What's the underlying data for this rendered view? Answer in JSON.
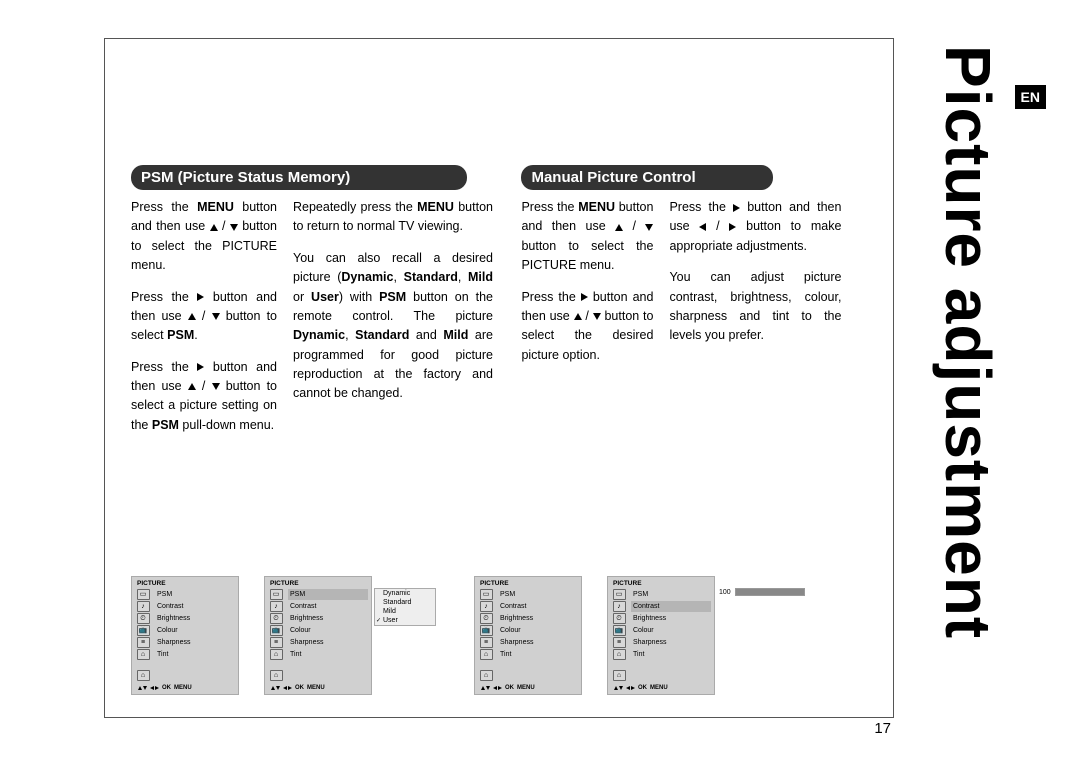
{
  "sideTitle": "Picture adjustment",
  "langBadge": "EN",
  "pageNumber": "17",
  "sections": {
    "psm": {
      "heading": "PSM (Picture Status Memory)",
      "col1": {
        "p1a": "Press the ",
        "p1b": "MENU",
        "p1c": " button and then use ",
        "p1d": " / ",
        "p1e": " button to select the PICTURE menu.",
        "p2a": "Press the ",
        "p2b": " button and then use ",
        "p2c": " / ",
        "p2d": " button to select ",
        "p2e": "PSM",
        "p2f": ".",
        "p3a": "Press the ",
        "p3b": " button and then use ",
        "p3c": " / ",
        "p3d": " button to select a picture setting on the ",
        "p3e": "PSM",
        "p3f": " pull-down menu."
      },
      "col2": {
        "p1a": "Repeatedly press the ",
        "p1b": "MENU",
        "p1c": " button to return to normal TV viewing.",
        "p2a": "You can also recall a desired picture (",
        "p2b": "Dynamic",
        "p2c": ", ",
        "p2d": "Standard",
        "p2e": ", ",
        "p2f": "Mild",
        "p2g": " or ",
        "p2h": "User",
        "p2i": ") with ",
        "p2j": "PSM",
        "p2k": " button on the remote control. The picture ",
        "p2l": "Dynamic",
        "p2m": ", ",
        "p2n": "Standard",
        "p2o": " and ",
        "p2p": "Mild",
        "p2q": " are programmed for good picture reproduction at the factory and cannot be changed."
      }
    },
    "manual": {
      "heading": "Manual Picture Control",
      "col1": {
        "p1a": "Press the ",
        "p1b": "MENU",
        "p1c": " button and then use ",
        "p1d": " / ",
        "p1e": " button to select the PICTURE menu.",
        "p2a": "Press the ",
        "p2b": " button and then use ",
        "p2c": " / ",
        "p2d": " button to select the desired picture option."
      },
      "col2": {
        "p1a": "Press the ",
        "p1b": " button and then use ",
        "p1c": " / ",
        "p1d": " button to make appropriate adjustments.",
        "p2": "You can adjust picture contrast, brightness, colour, sharpness and tint to the levels you prefer."
      }
    }
  },
  "osd": {
    "title": "PICTURE",
    "items": [
      "PSM",
      "Contrast",
      "Brightness",
      "Colour",
      "Sharpness",
      "Tint"
    ],
    "iconGlyphs": [
      "▭",
      "♪",
      "⏲",
      "📺",
      "≡",
      "⌂"
    ],
    "footer": {
      "ok": "OK",
      "menu": "MENU"
    },
    "menu2": {
      "selectedIndex": 0,
      "popup": [
        "Dynamic",
        "Standard",
        "Mild",
        "User"
      ],
      "checkedIndex": 3
    },
    "menu4": {
      "selectedIndex": 1,
      "value": "100",
      "fillPercent": 100
    },
    "colors": {
      "bg": "#d0d0d0",
      "selBg": "#b5b5b5",
      "border": "#aaaaaa"
    }
  }
}
